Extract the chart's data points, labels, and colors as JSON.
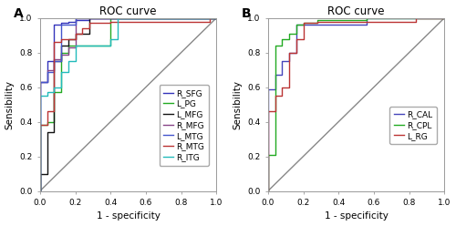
{
  "title": "ROC curve",
  "xlabel": "1 - specificity",
  "ylabel": "Sensibility",
  "panel_A_label": "A",
  "panel_B_label": "B",
  "A_curves": {
    "R_SFG": {
      "color": "#3333bb",
      "x": [
        0.0,
        0.0,
        0.04,
        0.04,
        0.08,
        0.08,
        0.12,
        0.12,
        0.16,
        0.16,
        0.2,
        0.2,
        0.28,
        0.28,
        0.4,
        0.4,
        1.0
      ],
      "y": [
        0.0,
        0.63,
        0.63,
        0.75,
        0.75,
        0.96,
        0.96,
        0.97,
        0.97,
        0.98,
        0.98,
        0.99,
        0.99,
        1.0,
        1.0,
        1.0,
        1.0
      ]
    },
    "L_PG": {
      "color": "#22aa22",
      "x": [
        0.0,
        0.0,
        0.04,
        0.04,
        0.08,
        0.08,
        0.12,
        0.12,
        0.16,
        0.16,
        0.2,
        0.2,
        0.4,
        0.4,
        1.0
      ],
      "y": [
        0.0,
        0.38,
        0.38,
        0.4,
        0.4,
        0.57,
        0.57,
        0.8,
        0.8,
        0.84,
        0.84,
        0.84,
        0.84,
        1.0,
        1.0
      ]
    },
    "L_MFG": {
      "color": "#111111",
      "x": [
        0.0,
        0.0,
        0.04,
        0.04,
        0.08,
        0.08,
        0.12,
        0.12,
        0.16,
        0.16,
        0.2,
        0.2,
        0.28,
        0.28,
        1.0
      ],
      "y": [
        0.0,
        0.1,
        0.1,
        0.34,
        0.34,
        0.75,
        0.75,
        0.84,
        0.84,
        0.88,
        0.88,
        0.91,
        0.91,
        1.0,
        1.0
      ]
    },
    "R_MFG": {
      "color": "#884488",
      "x": [
        0.0,
        0.0,
        0.04,
        0.04,
        0.08,
        0.08,
        0.12,
        0.12,
        0.16,
        0.16,
        0.2,
        0.2,
        1.0
      ],
      "y": [
        0.0,
        0.63,
        0.63,
        0.7,
        0.7,
        0.76,
        0.76,
        0.79,
        0.79,
        0.83,
        0.83,
        1.0,
        1.0
      ]
    },
    "L_MTG": {
      "color": "#4455cc",
      "x": [
        0.0,
        0.0,
        0.04,
        0.04,
        0.08,
        0.08,
        0.12,
        0.12,
        0.2,
        0.2,
        1.0
      ],
      "y": [
        0.0,
        0.63,
        0.63,
        0.69,
        0.69,
        0.75,
        0.75,
        0.96,
        0.96,
        1.0,
        1.0
      ]
    },
    "R_MTG": {
      "color": "#bb3333",
      "x": [
        0.0,
        0.0,
        0.04,
        0.04,
        0.08,
        0.08,
        0.12,
        0.12,
        0.2,
        0.2,
        0.24,
        0.24,
        0.28,
        0.28,
        0.4,
        0.4,
        0.96,
        0.96,
        1.0
      ],
      "y": [
        0.0,
        0.38,
        0.38,
        0.46,
        0.46,
        0.86,
        0.86,
        0.88,
        0.88,
        0.91,
        0.91,
        0.94,
        0.94,
        0.97,
        0.97,
        0.98,
        0.98,
        1.0,
        1.0
      ]
    },
    "R_ITG": {
      "color": "#22bbbb",
      "x": [
        0.0,
        0.0,
        0.04,
        0.04,
        0.08,
        0.08,
        0.12,
        0.12,
        0.16,
        0.16,
        0.2,
        0.2,
        0.4,
        0.4,
        0.44,
        0.44,
        1.0
      ],
      "y": [
        0.0,
        0.55,
        0.55,
        0.57,
        0.57,
        0.6,
        0.6,
        0.69,
        0.69,
        0.75,
        0.75,
        0.84,
        0.84,
        0.88,
        0.88,
        1.0,
        1.0
      ]
    }
  },
  "B_curves": {
    "R_CAL": {
      "color": "#4444bb",
      "x": [
        0.0,
        0.0,
        0.04,
        0.04,
        0.08,
        0.08,
        0.12,
        0.12,
        0.16,
        0.16,
        0.56,
        0.56,
        1.0
      ],
      "y": [
        0.0,
        0.59,
        0.59,
        0.67,
        0.67,
        0.75,
        0.75,
        0.8,
        0.8,
        0.96,
        0.96,
        1.0,
        1.0
      ]
    },
    "R_CPL": {
      "color": "#22aa22",
      "x": [
        0.0,
        0.0,
        0.04,
        0.04,
        0.08,
        0.08,
        0.12,
        0.12,
        0.16,
        0.16,
        0.2,
        0.2,
        0.28,
        0.28,
        0.56,
        0.56,
        1.0
      ],
      "y": [
        0.0,
        0.21,
        0.21,
        0.84,
        0.84,
        0.88,
        0.88,
        0.91,
        0.91,
        0.96,
        0.96,
        0.97,
        0.97,
        0.99,
        0.99,
        1.0,
        1.0
      ]
    },
    "L_RG": {
      "color": "#bb3333",
      "x": [
        0.0,
        0.0,
        0.04,
        0.04,
        0.08,
        0.08,
        0.12,
        0.12,
        0.16,
        0.16,
        0.2,
        0.2,
        0.28,
        0.28,
        0.84,
        0.84,
        1.0
      ],
      "y": [
        0.0,
        0.46,
        0.46,
        0.55,
        0.55,
        0.6,
        0.6,
        0.8,
        0.8,
        0.88,
        0.88,
        0.97,
        0.97,
        0.98,
        0.98,
        1.0,
        1.0
      ]
    }
  },
  "diag_color": "#888888",
  "tick_fontsize": 6.5,
  "label_fontsize": 7.5,
  "title_fontsize": 8.5,
  "legend_fontsize": 6.5,
  "linewidth": 1.0,
  "background_color": "#ffffff"
}
